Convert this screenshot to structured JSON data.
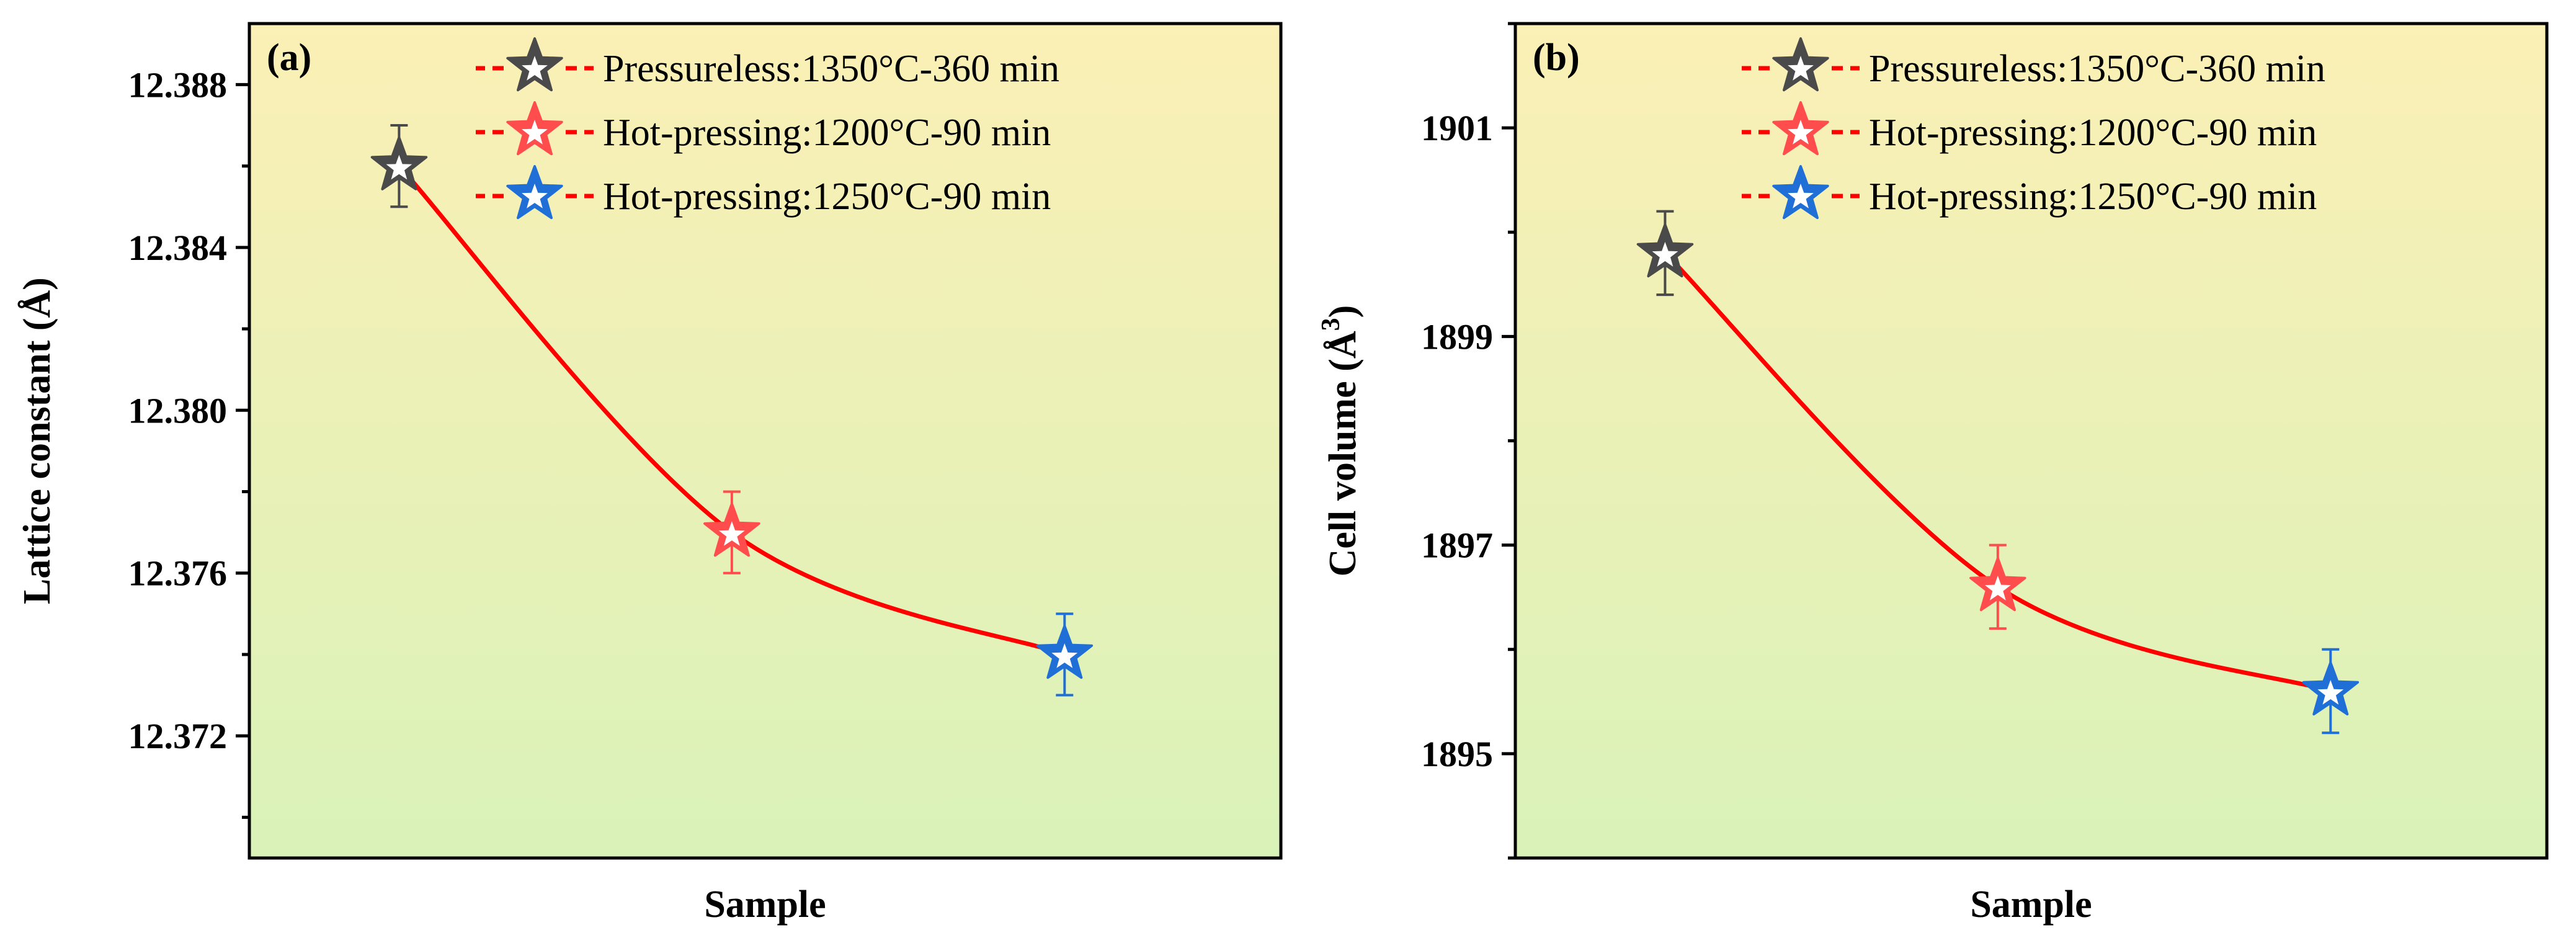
{
  "chart_data": [
    {
      "type": "scatter",
      "panel": "(a)",
      "xlabel": "Sample",
      "ylabel": "Lattice constant (Å)",
      "ylim": [
        12.369,
        12.3895
      ],
      "yticks": [
        12.372,
        12.376,
        12.38,
        12.384,
        12.388
      ],
      "ytick_labels": [
        "12.372",
        "12.376",
        "12.380",
        "12.384",
        "12.388"
      ],
      "x": [
        1,
        2,
        3
      ],
      "xlim": [
        0.55,
        3.65
      ],
      "grid": false,
      "legend_position": "top-right",
      "series": [
        {
          "name": "Pressureless:1350°C-360 min",
          "x": 1,
          "value": 12.386,
          "error": 0.001,
          "color": "#4a4a4a"
        },
        {
          "name": "Hot-pressing:1200°C-90 min",
          "x": 2,
          "value": 12.377,
          "error": 0.001,
          "color": "#ff4d4d"
        },
        {
          "name": "Hot-pressing:1250°C-90 min",
          "x": 3,
          "value": 12.374,
          "error": 0.001,
          "color": "#1f6fd6"
        }
      ],
      "fit": {
        "color": "#ff0000",
        "values": [
          12.386,
          12.377,
          12.374
        ]
      }
    },
    {
      "type": "scatter",
      "panel": "(b)",
      "xlabel": "Sample",
      "ylabel": "Cell volume (Å3)",
      "ylabel_main": "Cell volume (Å",
      "ylabel_sup": "3",
      "ylabel_close": ")",
      "ylim": [
        1894,
        1902
      ],
      "yticks": [
        1895,
        1897,
        1899,
        1901
      ],
      "ytick_labels": [
        "1895",
        "1897",
        "1899",
        "1901"
      ],
      "x": [
        1,
        2,
        3
      ],
      "xlim": [
        0.55,
        3.65
      ],
      "grid": false,
      "legend_position": "top-right",
      "series": [
        {
          "name": "Pressureless:1350°C-360 min",
          "x": 1,
          "value": 1899.8,
          "error": 0.4,
          "color": "#4a4a4a"
        },
        {
          "name": "Hot-pressing:1200°C-90 min",
          "x": 2,
          "value": 1896.6,
          "error": 0.4,
          "color": "#ff4d4d"
        },
        {
          "name": "Hot-pressing:1250°C-90 min",
          "x": 3,
          "value": 1895.6,
          "error": 0.4,
          "color": "#1f6fd6"
        }
      ],
      "fit": {
        "color": "#ff0000",
        "values": [
          1899.8,
          1896.6,
          1895.6
        ]
      }
    }
  ],
  "style": {
    "bg_top": "#fbf0b6",
    "bg_bottom": "#d9f2b8",
    "axis_color": "#000000"
  }
}
